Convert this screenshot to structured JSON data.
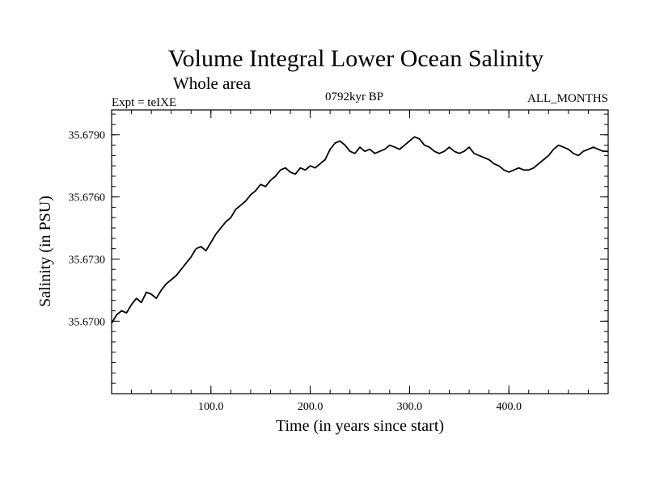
{
  "chart_data": {
    "type": "line",
    "title": "Volume Integral Lower Ocean Salinity",
    "subtitle": "Whole area",
    "header_left": "Expt = teIXE",
    "header_center": "0792kyr BP",
    "header_right": "ALL_MONTHS",
    "xlabel": "Time (in years since start)",
    "ylabel": "Salinity (in PSU)",
    "xlim": [
      0,
      500
    ],
    "ylim": [
      35.6665,
      35.6802
    ],
    "xticks": [
      100,
      200,
      300,
      400
    ],
    "xtick_labels": [
      "100.0",
      "200.0",
      "300.0",
      "400.0"
    ],
    "xminor_step": 20,
    "yticks": [
      35.67,
      35.673,
      35.676,
      35.679
    ],
    "ytick_labels": [
      "35.6700",
      "35.6730",
      "35.6760",
      "35.6790"
    ],
    "yminor_step": 0.0005,
    "grid": false,
    "series": [
      {
        "name": "salinity",
        "color": "#000000",
        "x": [
          0,
          5,
          10,
          15,
          20,
          25,
          30,
          35,
          40,
          45,
          50,
          55,
          60,
          65,
          70,
          75,
          80,
          85,
          90,
          95,
          100,
          105,
          110,
          115,
          120,
          125,
          130,
          135,
          140,
          145,
          150,
          155,
          160,
          165,
          170,
          175,
          180,
          185,
          190,
          195,
          200,
          205,
          210,
          215,
          220,
          225,
          230,
          235,
          240,
          245,
          250,
          255,
          260,
          265,
          270,
          275,
          280,
          285,
          290,
          295,
          300,
          305,
          310,
          315,
          320,
          325,
          330,
          335,
          340,
          345,
          350,
          355,
          360,
          365,
          370,
          375,
          380,
          385,
          390,
          395,
          400,
          405,
          410,
          415,
          420,
          425,
          430,
          435,
          440,
          445,
          450,
          455,
          460,
          465,
          470,
          475,
          480,
          485,
          490,
          495,
          500
        ],
        "values": [
          35.6699,
          35.6703,
          35.6705,
          35.6704,
          35.6708,
          35.6711,
          35.6709,
          35.6714,
          35.6713,
          35.6711,
          35.6715,
          35.6718,
          35.672,
          35.6722,
          35.6725,
          35.6728,
          35.6731,
          35.6735,
          35.6736,
          35.6734,
          35.6738,
          35.6742,
          35.6745,
          35.6748,
          35.675,
          35.6754,
          35.6756,
          35.6758,
          35.6761,
          35.6763,
          35.6766,
          35.6765,
          35.6768,
          35.677,
          35.6773,
          35.6774,
          35.6772,
          35.6771,
          35.6774,
          35.6773,
          35.6775,
          35.6774,
          35.6776,
          35.6778,
          35.6783,
          35.6786,
          35.6787,
          35.6785,
          35.6782,
          35.6781,
          35.6784,
          35.6782,
          35.6783,
          35.6781,
          35.6782,
          35.6783,
          35.6785,
          35.6784,
          35.6783,
          35.6785,
          35.6787,
          35.6789,
          35.6788,
          35.6785,
          35.6784,
          35.6782,
          35.6781,
          35.6782,
          35.6784,
          35.6782,
          35.6781,
          35.6782,
          35.6784,
          35.6781,
          35.678,
          35.6779,
          35.6778,
          35.6776,
          35.6775,
          35.6773,
          35.6772,
          35.6773,
          35.6774,
          35.6773,
          35.6773,
          35.6774,
          35.6776,
          35.6778,
          35.678,
          35.6783,
          35.6785,
          35.6784,
          35.6783,
          35.6781,
          35.678,
          35.6782,
          35.6783,
          35.6784,
          35.6783,
          35.6782,
          35.6782
        ]
      }
    ]
  }
}
